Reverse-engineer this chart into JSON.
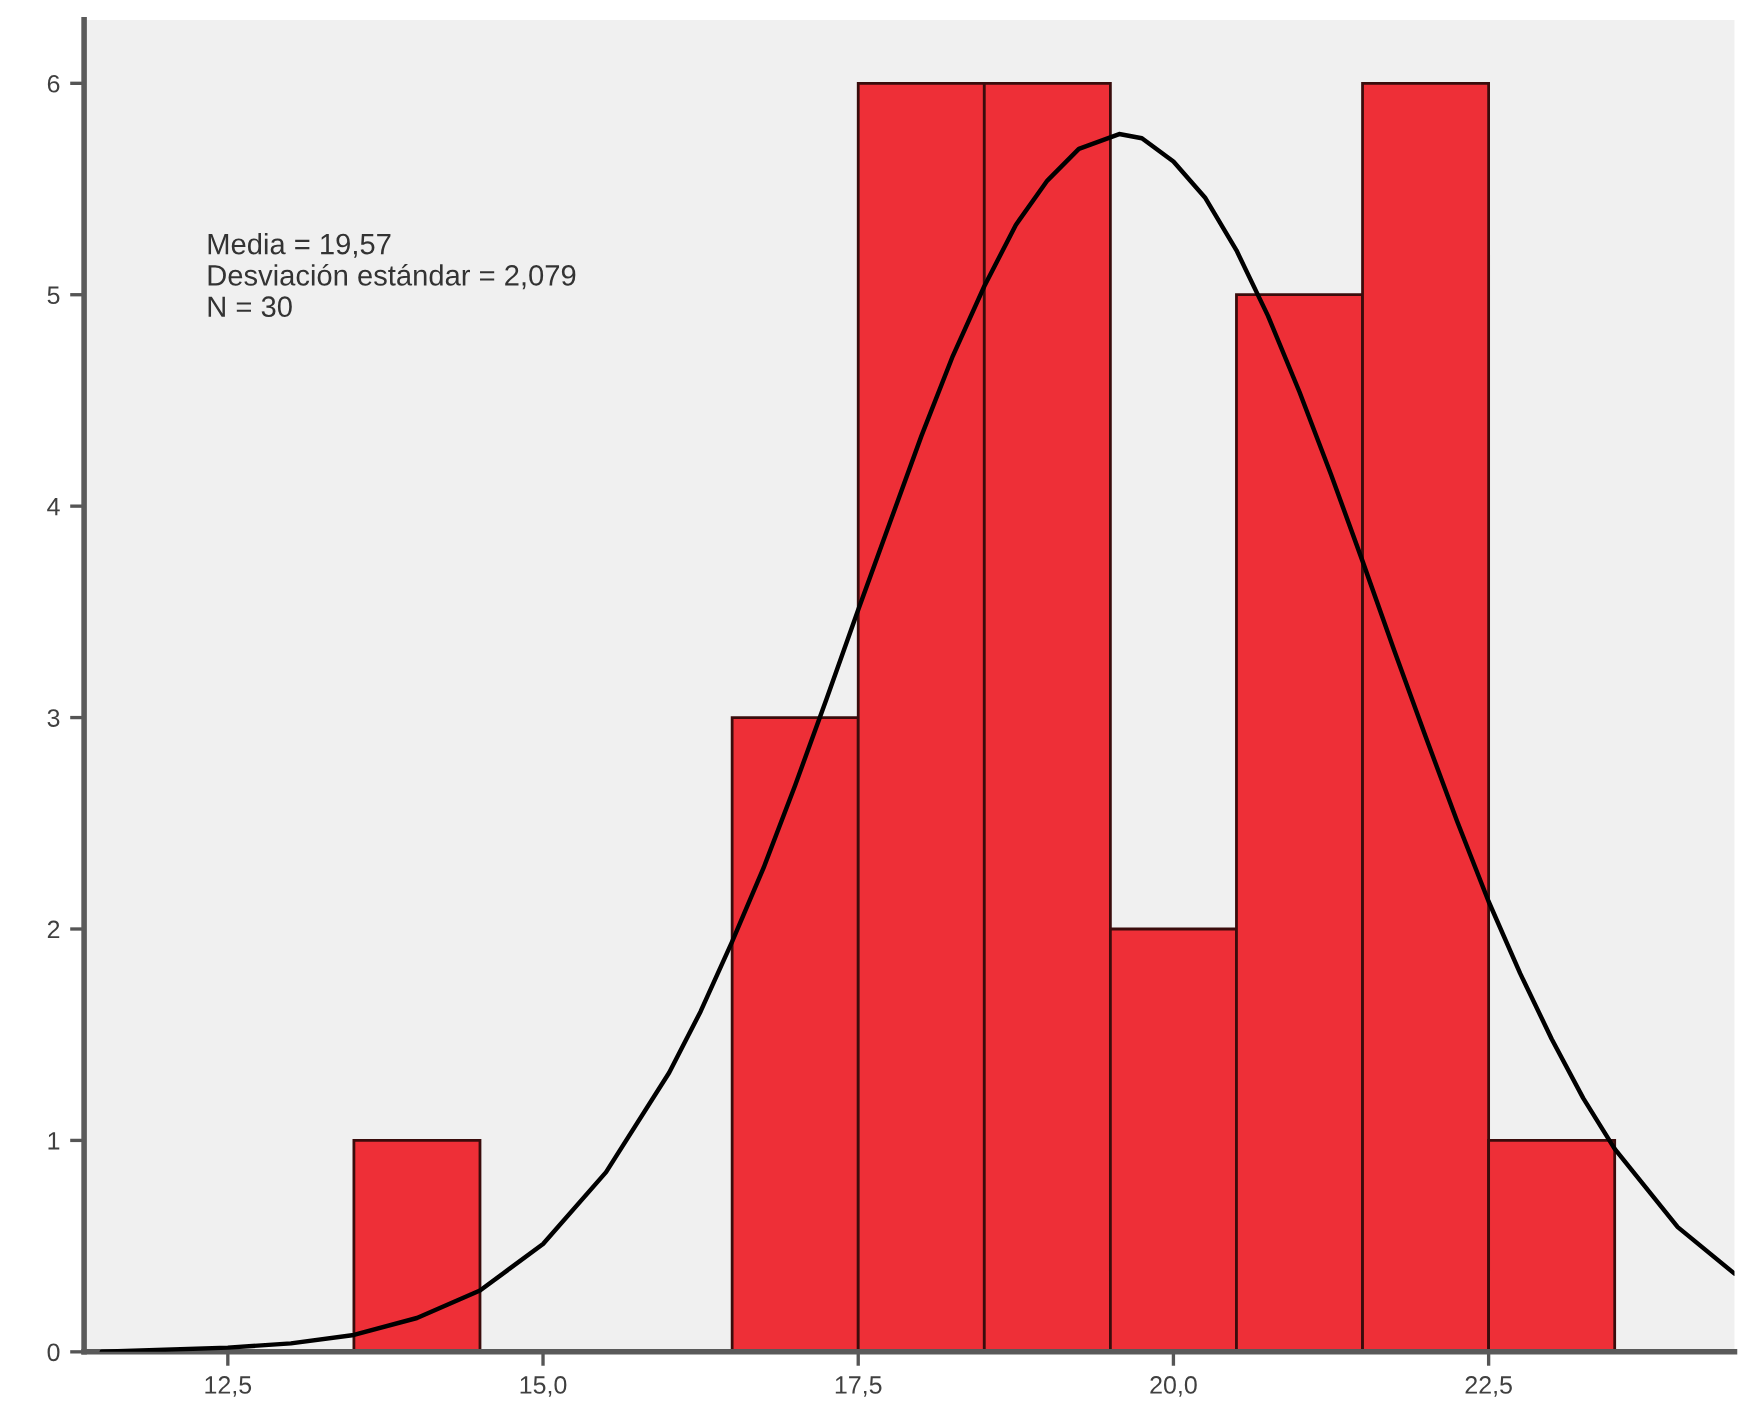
{
  "chart_data": {
    "type": "histogram",
    "annotations": [
      "Media = 19,57",
      "Desviación estándar = 2,079",
      "N = 30"
    ],
    "series": [
      {
        "color": "#ee2f37",
        "bins": [
          13.5,
          14.5,
          15.5,
          16.5,
          17.5,
          18.5,
          19.5,
          20.5,
          21.5,
          22.5,
          23.5
        ],
        "values": [
          1,
          0,
          0,
          3,
          6,
          6,
          2,
          5,
          6,
          1
        ]
      },
      {
        "type": "line",
        "color": "#000000",
        "x": [
          11.5,
          12.0,
          12.5,
          13.0,
          13.5,
          14.0,
          14.5,
          15.0,
          15.5,
          16.0,
          16.25,
          16.5,
          16.75,
          17.0,
          17.25,
          17.5,
          17.75,
          18.0,
          18.25,
          18.5,
          18.75,
          19.0,
          19.25,
          19.57,
          19.75,
          20.0,
          20.25,
          20.5,
          20.75,
          21.0,
          21.25,
          21.5,
          21.75,
          22.0,
          22.25,
          22.5,
          22.75,
          23.0,
          23.25,
          23.5,
          24.0,
          24.45
        ],
        "values": [
          0.0,
          0.01,
          0.02,
          0.04,
          0.08,
          0.16,
          0.29,
          0.51,
          0.85,
          1.32,
          1.61,
          1.94,
          2.29,
          2.68,
          3.09,
          3.51,
          3.92,
          4.33,
          4.71,
          5.04,
          5.33,
          5.54,
          5.69,
          5.76,
          5.74,
          5.63,
          5.46,
          5.21,
          4.9,
          4.54,
          4.15,
          3.74,
          3.32,
          2.91,
          2.51,
          2.13,
          1.79,
          1.48,
          1.2,
          0.96,
          0.59,
          0.37
        ]
      }
    ],
    "xlim": [
      11.36,
      24.45
    ],
    "ylim": [
      0,
      6.3
    ],
    "xticks": [
      {
        "value": 12.5,
        "label": "12,5"
      },
      {
        "value": 15.0,
        "label": "15,0"
      },
      {
        "value": 17.5,
        "label": "17,5"
      },
      {
        "value": 20.0,
        "label": "20,0"
      },
      {
        "value": 22.5,
        "label": "22,5"
      }
    ],
    "yticks": [
      0,
      1,
      2,
      3,
      4,
      5,
      6
    ]
  }
}
